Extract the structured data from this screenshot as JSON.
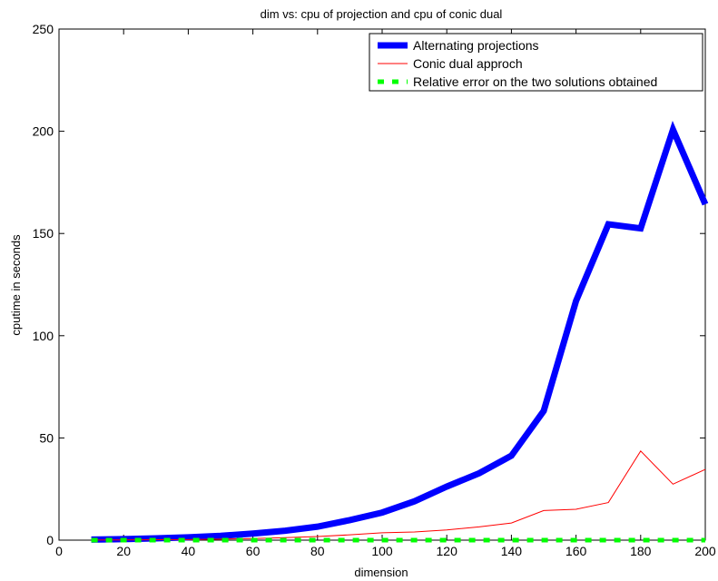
{
  "chart_data": {
    "type": "line",
    "title": "dim vs: cpu of projection and cpu of conic dual",
    "xlabel": "dimension",
    "ylabel": "cputime in seconds",
    "xlim": [
      0,
      200
    ],
    "ylim": [
      0,
      250
    ],
    "xticks": [
      0,
      20,
      40,
      60,
      80,
      100,
      120,
      140,
      160,
      180,
      200
    ],
    "yticks": [
      0,
      50,
      100,
      150,
      200,
      250
    ],
    "grid": false,
    "legend_position": "top-right",
    "x": [
      10,
      20,
      30,
      40,
      50,
      60,
      70,
      80,
      90,
      100,
      110,
      120,
      130,
      140,
      150,
      160,
      170,
      180,
      190,
      200
    ],
    "series": [
      {
        "name": "Alternating projections",
        "color": "#0000ff",
        "style": "solid-thick",
        "values": [
          0.3,
          0.5,
          0.9,
          1.4,
          2.1,
          3.2,
          4.6,
          6.6,
          9.8,
          13.5,
          19.0,
          26.2,
          32.7,
          41.3,
          63.2,
          117.0,
          154.5,
          152.5,
          200.8,
          164.3
        ]
      },
      {
        "name": "Conic dual approch",
        "color": "#ff0000",
        "style": "solid-thin",
        "values": [
          0.05,
          0.1,
          0.2,
          0.3,
          0.5,
          0.8,
          1.2,
          1.8,
          2.6,
          3.6,
          4.0,
          5.0,
          6.5,
          8.4,
          14.5,
          15.1,
          18.4,
          43.6,
          27.4,
          34.6
        ]
      },
      {
        "name": "Relative error on the two solutions obtained",
        "color": "#00ff00",
        "style": "dashed-thick",
        "values": [
          0,
          0,
          0,
          0,
          0,
          0,
          0,
          0,
          0,
          0,
          0,
          0,
          0,
          0,
          0,
          0,
          0,
          0,
          0,
          0
        ]
      }
    ]
  }
}
